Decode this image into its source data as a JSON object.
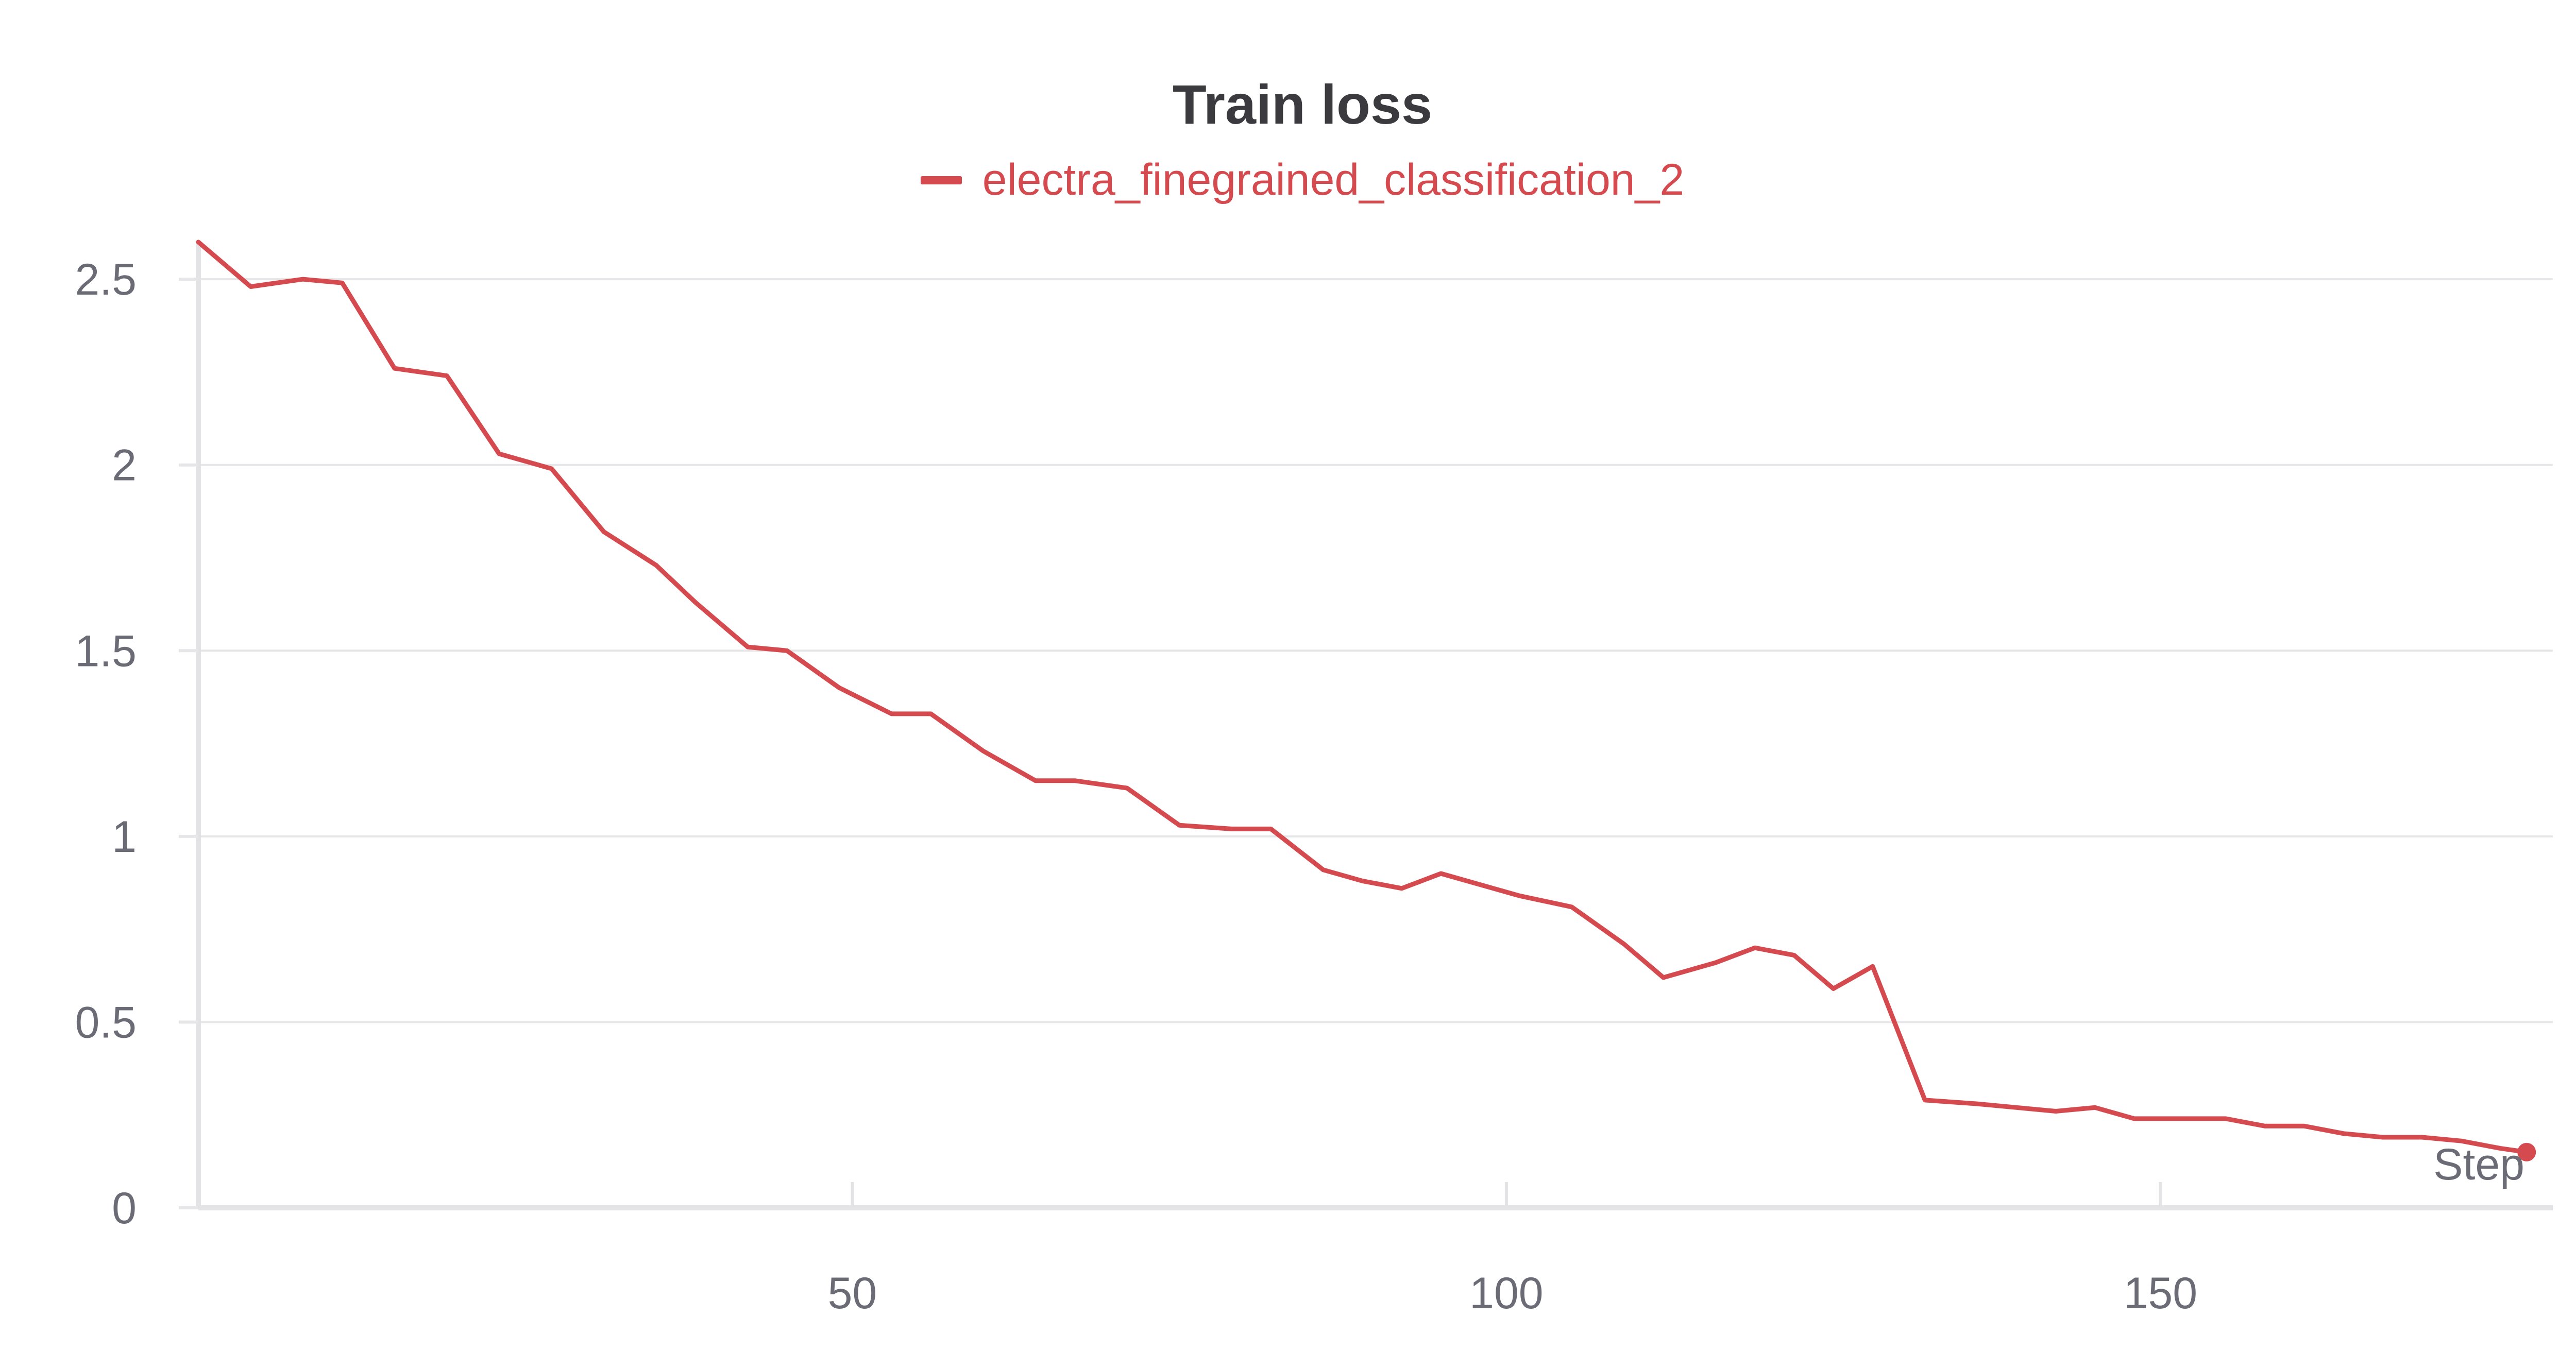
{
  "chart_data": {
    "type": "line",
    "title": "Train loss",
    "xlabel": "Step",
    "ylabel": "",
    "xlim": [
      0,
      180
    ],
    "ylim": [
      0,
      2.6
    ],
    "xticks": [
      50,
      100,
      150
    ],
    "yticks": [
      0,
      0.5,
      1,
      1.5,
      2,
      2.5
    ],
    "x_tick_labels": [
      "50",
      "100",
      "150"
    ],
    "y_tick_labels": [
      "0",
      "0.5",
      "1",
      "1.5",
      "2",
      "2.5"
    ],
    "grid": true,
    "legend_position": "top-center",
    "series": [
      {
        "name": "electra_finegrained_classification_2",
        "color": "#d44a4f",
        "x": [
          0,
          4,
          8,
          11,
          15,
          19,
          23,
          27,
          31,
          35,
          38,
          42,
          45,
          49,
          53,
          56,
          60,
          64,
          67,
          71,
          75,
          79,
          82,
          86,
          89,
          92,
          95,
          99,
          101,
          105,
          109,
          112,
          116,
          119,
          122,
          125,
          128,
          132,
          136,
          139,
          142,
          145,
          148,
          151,
          155,
          158,
          161,
          164,
          167,
          170,
          173,
          176,
          178
        ],
        "y": [
          2.6,
          2.48,
          2.5,
          2.49,
          2.26,
          2.24,
          2.03,
          1.99,
          1.82,
          1.73,
          1.63,
          1.51,
          1.5,
          1.4,
          1.33,
          1.33,
          1.23,
          1.15,
          1.15,
          1.13,
          1.03,
          1.02,
          1.02,
          0.91,
          0.88,
          0.86,
          0.9,
          0.86,
          0.84,
          0.81,
          0.71,
          0.62,
          0.66,
          0.7,
          0.68,
          0.59,
          0.65,
          0.29,
          0.28,
          0.27,
          0.26,
          0.27,
          0.24,
          0.24,
          0.24,
          0.22,
          0.22,
          0.2,
          0.19,
          0.19,
          0.18,
          0.16,
          0.15
        ]
      }
    ]
  }
}
